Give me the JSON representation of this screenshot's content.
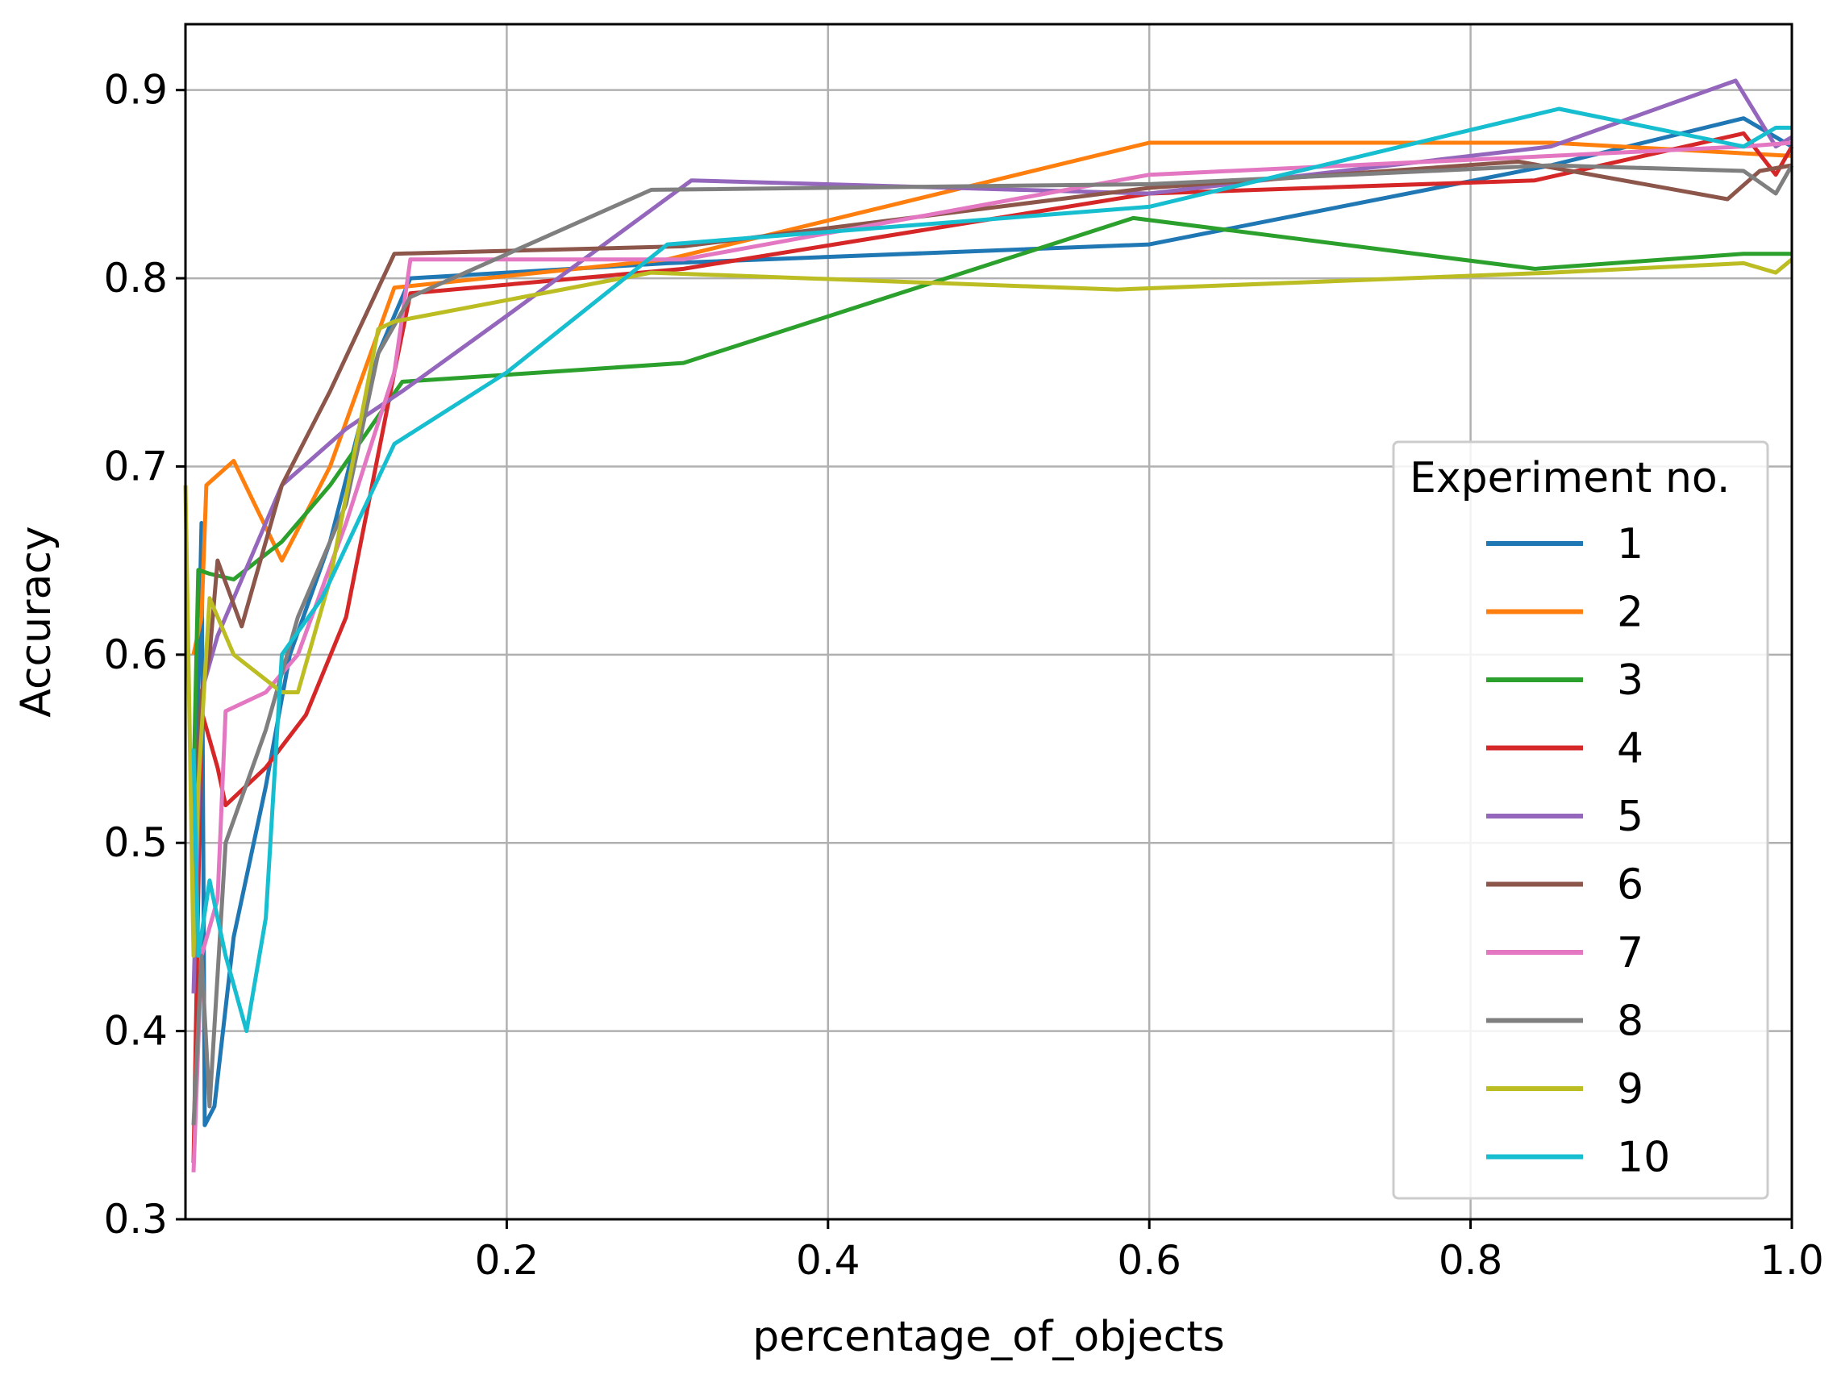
{
  "chart_data": {
    "type": "line",
    "title": "",
    "xlabel": "percentage_of_objects",
    "ylabel": "Accuracy",
    "xlim": [
      0.0,
      1.0
    ],
    "ylim": [
      0.3,
      0.935
    ],
    "xticks": [
      0.2,
      0.4,
      0.6,
      0.8,
      1.0
    ],
    "xtick_labels": [
      "0.2",
      "0.4",
      "0.6",
      "0.8",
      "1.0"
    ],
    "yticks": [
      0.3,
      0.4,
      0.5,
      0.6,
      0.7,
      0.8,
      0.9
    ],
    "ytick_labels": [
      "0.3",
      "0.4",
      "0.5",
      "0.6",
      "0.7",
      "0.8",
      "0.9"
    ],
    "grid": true,
    "legend_title": "Experiment no.",
    "legend_position": "center-right",
    "series": [
      {
        "name": "1",
        "color": "#1f77b4",
        "x": [
          0.005,
          0.01,
          0.012,
          0.018,
          0.03,
          0.05,
          0.065,
          0.09,
          0.12,
          0.14,
          0.3,
          0.6,
          0.85,
          0.97,
          1.0
        ],
        "y": [
          0.47,
          0.67,
          0.35,
          0.36,
          0.45,
          0.53,
          0.6,
          0.66,
          0.76,
          0.8,
          0.808,
          0.818,
          0.86,
          0.885,
          0.87
        ]
      },
      {
        "name": "2",
        "color": "#ff7f0e",
        "x": [
          0.005,
          0.01,
          0.013,
          0.03,
          0.06,
          0.09,
          0.13,
          0.3,
          0.6,
          0.85,
          1.0
        ],
        "y": [
          0.6,
          0.62,
          0.69,
          0.703,
          0.65,
          0.7,
          0.795,
          0.81,
          0.872,
          0.872,
          0.865
        ]
      },
      {
        "name": "3",
        "color": "#2ca02c",
        "x": [
          0.005,
          0.008,
          0.015,
          0.03,
          0.06,
          0.09,
          0.135,
          0.31,
          0.59,
          0.84,
          0.97,
          1.0
        ],
        "y": [
          0.53,
          0.645,
          0.643,
          0.64,
          0.66,
          0.69,
          0.745,
          0.755,
          0.832,
          0.805,
          0.813,
          0.813
        ]
      },
      {
        "name": "4",
        "color": "#d62728",
        "x": [
          0.005,
          0.01,
          0.02,
          0.025,
          0.05,
          0.075,
          0.1,
          0.13,
          0.14,
          0.31,
          0.6,
          0.84,
          0.97,
          0.99,
          1.0
        ],
        "y": [
          0.33,
          0.57,
          0.54,
          0.52,
          0.54,
          0.568,
          0.62,
          0.75,
          0.792,
          0.805,
          0.845,
          0.852,
          0.877,
          0.855,
          0.87
        ]
      },
      {
        "name": "5",
        "color": "#9467bd",
        "x": [
          0.005,
          0.01,
          0.02,
          0.03,
          0.06,
          0.1,
          0.135,
          0.2,
          0.315,
          0.6,
          0.85,
          0.965,
          0.99,
          1.0
        ],
        "y": [
          0.42,
          0.58,
          0.61,
          0.63,
          0.69,
          0.72,
          0.74,
          0.78,
          0.852,
          0.845,
          0.87,
          0.905,
          0.87,
          0.875
        ]
      },
      {
        "name": "6",
        "color": "#8c564b",
        "x": [
          0.005,
          0.01,
          0.015,
          0.02,
          0.035,
          0.06,
          0.09,
          0.13,
          0.31,
          0.6,
          0.83,
          0.96,
          0.98,
          1.0
        ],
        "y": [
          0.5,
          0.58,
          0.6,
          0.65,
          0.615,
          0.69,
          0.74,
          0.813,
          0.817,
          0.848,
          0.862,
          0.842,
          0.857,
          0.86
        ]
      },
      {
        "name": "7",
        "color": "#e377c2",
        "x": [
          0.005,
          0.01,
          0.02,
          0.025,
          0.05,
          0.07,
          0.1,
          0.13,
          0.14,
          0.31,
          0.6,
          0.85,
          0.97,
          1.0
        ],
        "y": [
          0.325,
          0.44,
          0.47,
          0.57,
          0.58,
          0.6,
          0.67,
          0.75,
          0.81,
          0.81,
          0.855,
          0.865,
          0.87,
          0.872
        ]
      },
      {
        "name": "8",
        "color": "#7f7f7f",
        "x": [
          0.005,
          0.01,
          0.015,
          0.025,
          0.05,
          0.07,
          0.1,
          0.12,
          0.14,
          0.29,
          0.6,
          0.85,
          0.97,
          0.99,
          1.0
        ],
        "y": [
          0.35,
          0.44,
          0.36,
          0.5,
          0.56,
          0.62,
          0.68,
          0.76,
          0.79,
          0.847,
          0.85,
          0.86,
          0.857,
          0.845,
          0.86
        ]
      },
      {
        "name": "9",
        "color": "#bcbd22",
        "x": [
          0.0,
          0.005,
          0.008,
          0.015,
          0.03,
          0.06,
          0.07,
          0.09,
          0.12,
          0.13,
          0.29,
          0.58,
          0.85,
          0.97,
          0.99,
          1.0
        ],
        "y": [
          0.69,
          0.44,
          0.53,
          0.63,
          0.6,
          0.58,
          0.58,
          0.64,
          0.773,
          0.777,
          0.803,
          0.794,
          0.803,
          0.808,
          0.803,
          0.81
        ]
      },
      {
        "name": "10",
        "color": "#17becf",
        "x": [
          0.005,
          0.008,
          0.015,
          0.025,
          0.038,
          0.05,
          0.06,
          0.085,
          0.13,
          0.2,
          0.3,
          0.6,
          0.855,
          0.97,
          0.99,
          1.0
        ],
        "y": [
          0.55,
          0.44,
          0.48,
          0.44,
          0.4,
          0.46,
          0.6,
          0.63,
          0.712,
          0.75,
          0.818,
          0.838,
          0.89,
          0.87,
          0.88,
          0.88
        ]
      }
    ]
  }
}
